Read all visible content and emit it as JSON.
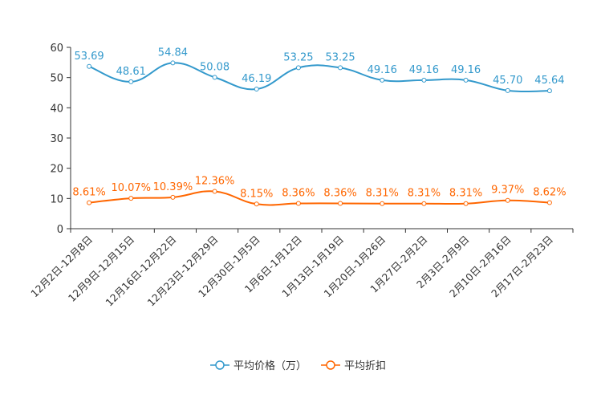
{
  "chart_data": {
    "type": "line",
    "title": "",
    "xlabel": "",
    "ylabel": "",
    "ylim": [
      0,
      60
    ],
    "yticks": [
      0,
      10,
      20,
      30,
      40,
      50,
      60
    ],
    "grid": false,
    "legend_position": "bottom-center",
    "categories": [
      "12月2日-12月8日",
      "12月9日-12月15日",
      "12月16日-12月22日",
      "12月23日-12月29日",
      "12月30日-1月5日",
      "1月6日-1月12日",
      "1月13日-1月19日",
      "1月20日-1月26日",
      "1月27日-2月2日",
      "2月3日-2月9日",
      "2月10日-2月16日",
      "2月17日-2月23日"
    ],
    "series": [
      {
        "name": "平均价格（万）",
        "color": "#3399cc",
        "values": [
          53.69,
          48.61,
          54.84,
          50.08,
          46.19,
          53.25,
          53.25,
          49.16,
          49.16,
          49.16,
          45.7,
          45.64
        ],
        "labels": [
          "53.69",
          "48.61",
          "54.84",
          "50.08",
          "46.19",
          "53.25",
          "53.25",
          "49.16",
          "49.16",
          "49.16",
          "45.70",
          "45.64"
        ]
      },
      {
        "name": "平均折扣",
        "color": "#ff6600",
        "values": [
          8.61,
          10.07,
          10.39,
          12.36,
          8.15,
          8.36,
          8.36,
          8.31,
          8.31,
          8.31,
          9.37,
          8.62
        ],
        "labels": [
          "8.61%",
          "10.07%",
          "10.39%",
          "12.36%",
          "8.15%",
          "8.36%",
          "8.36%",
          "8.31%",
          "8.31%",
          "8.31%",
          "9.37%",
          "8.62%"
        ]
      }
    ]
  }
}
